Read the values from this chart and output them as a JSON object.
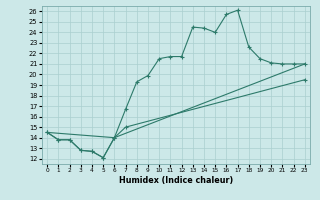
{
  "xlabel": "Humidex (Indice chaleur)",
  "xlim": [
    -0.5,
    23.5
  ],
  "ylim": [
    11.5,
    26.5
  ],
  "xticks": [
    0,
    1,
    2,
    3,
    4,
    5,
    6,
    7,
    8,
    9,
    10,
    11,
    12,
    13,
    14,
    15,
    16,
    17,
    18,
    19,
    20,
    21,
    22,
    23
  ],
  "yticks": [
    12,
    13,
    14,
    15,
    16,
    17,
    18,
    19,
    20,
    21,
    22,
    23,
    24,
    25,
    26
  ],
  "bg_color": "#cce8e8",
  "line_color": "#2d7a6a",
  "grid_color": "#aacfcf",
  "line1_x": [
    0,
    1,
    2,
    3,
    4,
    5,
    6,
    7,
    8,
    9,
    10,
    11,
    12,
    13,
    14,
    15,
    16,
    17,
    18,
    19,
    20,
    21,
    22,
    23
  ],
  "line1_y": [
    14.5,
    13.8,
    13.8,
    12.8,
    12.7,
    12.1,
    14.0,
    16.7,
    19.3,
    19.9,
    21.5,
    21.7,
    21.7,
    24.5,
    24.4,
    24.0,
    25.7,
    26.1,
    22.6,
    21.5,
    21.1,
    21.0,
    21.0,
    21.0
  ],
  "line2_x": [
    0,
    1,
    2,
    3,
    4,
    5,
    6,
    7,
    23
  ],
  "line2_y": [
    14.5,
    13.8,
    13.8,
    12.8,
    12.7,
    12.1,
    14.0,
    15.0,
    19.5
  ],
  "line3_x": [
    0,
    6,
    23
  ],
  "line3_y": [
    14.5,
    14.0,
    21.0
  ]
}
